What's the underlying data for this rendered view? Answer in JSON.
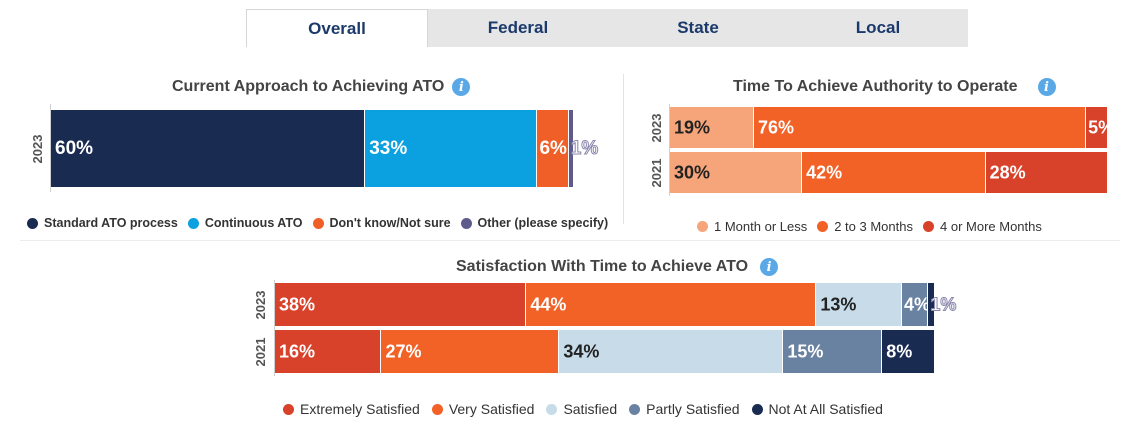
{
  "tabs": [
    {
      "label": "Overall",
      "active": true
    },
    {
      "label": "Federal",
      "active": false
    },
    {
      "label": "State",
      "active": false
    },
    {
      "label": "Local",
      "active": false
    }
  ],
  "chart_data": [
    {
      "type": "bar",
      "orientation": "horizontal",
      "stacked": true,
      "title": "Current Approach to Achieving ATO",
      "categories": [
        "2023"
      ],
      "xlim": [
        0,
        100
      ],
      "legend_position": "bottom",
      "series": [
        {
          "name": "Standard ATO process",
          "color": "#1a2b52",
          "values": [
            60
          ],
          "labels": [
            "60%"
          ]
        },
        {
          "name": "Continuous ATO",
          "color": "#0ba0e0",
          "values": [
            33
          ],
          "labels": [
            "33%"
          ]
        },
        {
          "name": "Don't know/Not sure",
          "color": "#f05f28",
          "values": [
            6
          ],
          "labels": [
            "6%"
          ]
        },
        {
          "name": "Other (please specify)",
          "color": "#5f5a8c",
          "values": [
            1
          ],
          "labels": [
            "1%"
          ]
        }
      ]
    },
    {
      "type": "bar",
      "orientation": "horizontal",
      "stacked": true,
      "title": "Time To Achieve Authority to Operate",
      "categories": [
        "2023",
        "2021"
      ],
      "xlim": [
        0,
        100
      ],
      "legend_position": "bottom",
      "series": [
        {
          "name": "1 Month or Less",
          "color": "#f6a57a",
          "values": [
            19,
            30
          ],
          "labels": [
            "19%",
            "30%"
          ]
        },
        {
          "name": "2 to 3 Months",
          "color": "#f26126",
          "values": [
            76,
            42
          ],
          "labels": [
            "76%",
            "42%"
          ]
        },
        {
          "name": "4 or More Months",
          "color": "#d8412a",
          "values": [
            5,
            28
          ],
          "labels": [
            "5%",
            "28%"
          ]
        }
      ]
    },
    {
      "type": "bar",
      "orientation": "horizontal",
      "stacked": true,
      "title": "Satisfaction With Time to Achieve ATO",
      "categories": [
        "2023",
        "2021"
      ],
      "xlim": [
        0,
        100
      ],
      "legend_position": "bottom",
      "series": [
        {
          "name": "Extremely Satisfied",
          "color": "#d8412a",
          "values": [
            38,
            16
          ],
          "labels": [
            "38%",
            "16%"
          ]
        },
        {
          "name": "Very Satisfied",
          "color": "#f26126",
          "values": [
            44,
            27
          ],
          "labels": [
            "44%",
            "27%"
          ]
        },
        {
          "name": "Satisfied",
          "color": "#c7dbe9",
          "values": [
            13,
            34
          ],
          "labels": [
            "13%",
            "34%"
          ]
        },
        {
          "name": "Partly Satisfied",
          "color": "#6a82a1",
          "values": [
            4,
            15
          ],
          "labels": [
            "4%",
            "15%"
          ]
        },
        {
          "name": "Not At All Satisfied",
          "color": "#1a2b52",
          "values": [
            1,
            8
          ],
          "labels": [
            "1%",
            "8%"
          ]
        }
      ]
    }
  ]
}
